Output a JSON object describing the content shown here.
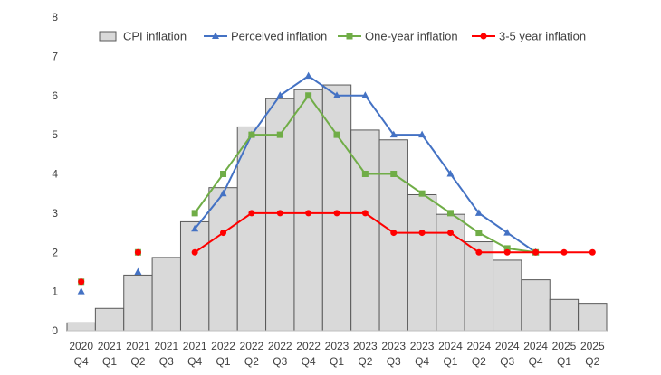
{
  "chart_data": {
    "type": "bar",
    "categories": [
      [
        "2020",
        "Q4"
      ],
      [
        "2021",
        "Q1"
      ],
      [
        "2021",
        "Q2"
      ],
      [
        "2021",
        "Q3"
      ],
      [
        "2021",
        "Q4"
      ],
      [
        "2022",
        "Q1"
      ],
      [
        "2022",
        "Q2"
      ],
      [
        "2022",
        "Q3"
      ],
      [
        "2022",
        "Q4"
      ],
      [
        "2023",
        "Q1"
      ],
      [
        "2023",
        "Q2"
      ],
      [
        "2023",
        "Q3"
      ],
      [
        "2023",
        "Q4"
      ],
      [
        "2024",
        "Q1"
      ],
      [
        "2024",
        "Q2"
      ],
      [
        "2024",
        "Q3"
      ],
      [
        "2024",
        "Q4"
      ],
      [
        "2025",
        "Q1"
      ],
      [
        "2025",
        "Q2"
      ]
    ],
    "ylim": [
      0,
      8
    ],
    "yticks": [
      0,
      1,
      2,
      3,
      4,
      5,
      6,
      7,
      8
    ],
    "grid": false,
    "legend_position": "top",
    "series": [
      {
        "name": "CPI inflation",
        "kind": "bar",
        "color": "#d9d9d9",
        "edge": "#595959",
        "values": [
          0.2,
          0.57,
          1.42,
          1.87,
          2.78,
          3.65,
          5.2,
          5.92,
          6.15,
          6.27,
          5.12,
          4.87,
          3.47,
          2.97,
          2.27,
          1.8,
          1.3,
          0.8,
          0.7
        ]
      },
      {
        "name": "Perceived inflation",
        "kind": "line",
        "marker": "triangle",
        "color": "#4472c4",
        "values": [
          1.0,
          null,
          1.5,
          null,
          2.6,
          3.5,
          5.0,
          6.0,
          6.5,
          6.0,
          6.0,
          5.0,
          5.0,
          4.0,
          3.0,
          2.5,
          2.0,
          null,
          null
        ]
      },
      {
        "name": "One-year inflation",
        "kind": "line",
        "marker": "square",
        "color": "#70ad47",
        "values": [
          1.25,
          null,
          2.0,
          null,
          3.0,
          4.0,
          5.0,
          5.0,
          6.0,
          5.0,
          4.0,
          4.0,
          3.5,
          3.0,
          2.5,
          2.1,
          2.0,
          null,
          null
        ]
      },
      {
        "name": "3-5 year inflation",
        "kind": "line",
        "marker": "circle",
        "color": "#ff0000",
        "values": [
          1.25,
          null,
          2.0,
          null,
          2.0,
          2.5,
          3.0,
          3.0,
          3.0,
          3.0,
          3.0,
          2.5,
          2.5,
          2.5,
          2.0,
          2.0,
          2.0,
          2.0,
          2.0
        ]
      }
    ]
  }
}
